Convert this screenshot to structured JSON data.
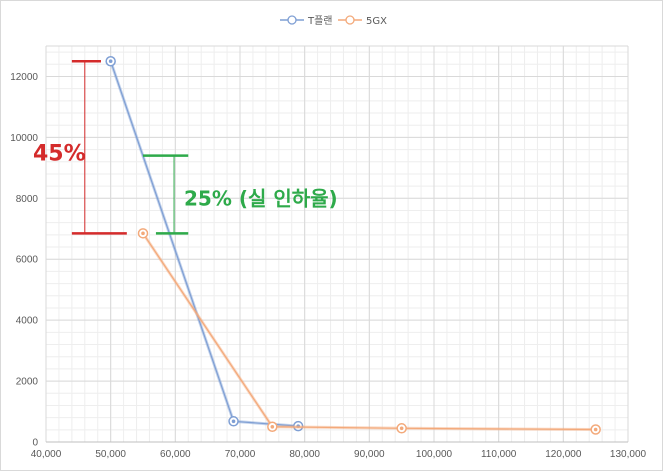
{
  "chart_data": {
    "type": "scatter",
    "title": "",
    "xlabel": "",
    "ylabel": "",
    "xlim": [
      40000,
      130000
    ],
    "ylim": [
      0,
      13000
    ],
    "x_ticks": [
      40000,
      50000,
      60000,
      70000,
      80000,
      90000,
      100000,
      110000,
      120000,
      130000
    ],
    "x_tick_labels": [
      "40,000",
      "50,000",
      "60,000",
      "70,000",
      "80,000",
      "90,000",
      "100,000",
      "110,000",
      "120,000",
      "130,000"
    ],
    "y_ticks": [
      0,
      2000,
      4000,
      6000,
      8000,
      10000,
      12000
    ],
    "y_tick_labels": [
      "0",
      "2000",
      "4000",
      "6000",
      "8000",
      "10000",
      "12000"
    ],
    "grid": true,
    "legend_position": "top",
    "series": [
      {
        "name": "T플랜",
        "color": "#7f9fd4",
        "points": [
          [
            50000,
            12500
          ],
          [
            69000,
            680
          ],
          [
            79000,
            520
          ]
        ]
      },
      {
        "name": "5GX",
        "color": "#f3a97a",
        "points": [
          [
            55000,
            6850
          ],
          [
            75000,
            500
          ],
          [
            95000,
            450
          ],
          [
            125000,
            410
          ]
        ]
      }
    ],
    "annotations": [
      {
        "text": "45%",
        "color": "#d42b2b",
        "bracket_top_y": 12500,
        "bracket_bottom_y": 6850,
        "x_left": 44000,
        "x_right": 48500,
        "x_bottom_right": 52500,
        "x_vline": 46000
      },
      {
        "text": "25% (실 인하율)",
        "color": "#2eaa4a",
        "bracket_top_y": 9400,
        "bracket_bottom_y": 6850,
        "x_left": 55000,
        "x_right": 62000,
        "x_bottom_left": 57000,
        "x_vline": 59800
      }
    ]
  }
}
